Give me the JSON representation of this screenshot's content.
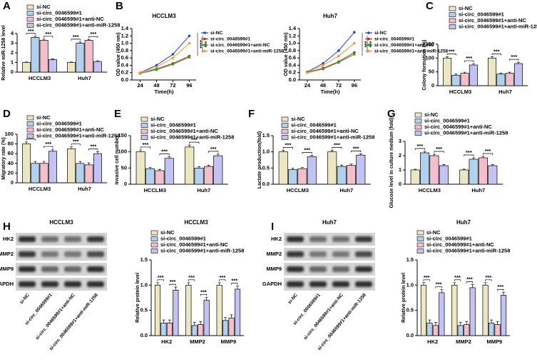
{
  "chart_data": [
    {
      "type": "bar",
      "panel": "A",
      "ylabel": "Relative miR-1258 level",
      "categories": [
        "HCCLM3",
        "Huh7"
      ],
      "series": [
        {
          "name": "si-NC",
          "color": "#ece7c3",
          "values": [
            1,
            1
          ],
          "errors": [
            0.05,
            0.05
          ]
        },
        {
          "name": "si-circ_0046599#1",
          "color": "#b3d1ee",
          "values": [
            3.6,
            3.0
          ],
          "errors": [
            0.12,
            0.12
          ]
        },
        {
          "name": "si-circ_0046599#1+anti-NC",
          "color": "#f4bfcc",
          "values": [
            3.3,
            3.3
          ],
          "errors": [
            0.12,
            0.1
          ]
        },
        {
          "name": "si-circ_0046599#1+anti-miR-1258",
          "color": "#c3c3f3",
          "values": [
            1.3,
            1.1
          ],
          "errors": [
            0.08,
            0.08
          ]
        }
      ],
      "ylim": [
        0,
        4
      ],
      "yticks": [
        0,
        1,
        2,
        3,
        4
      ],
      "significance": [
        [
          "***",
          "***"
        ],
        [
          "***",
          "***"
        ]
      ]
    },
    {
      "type": "line",
      "panel": "B",
      "title": "HCCLM3",
      "xlabel": "Time(h)",
      "ylabel": "OD value (450 nm)",
      "x": [
        24,
        48,
        72,
        96
      ],
      "xlim": [
        12,
        106
      ],
      "series": [
        {
          "name": "si-NC",
          "color": "#1f3fd6",
          "values": [
            0.2,
            0.4,
            0.7,
            1.2
          ]
        },
        {
          "name": "si-circ_0046599#1",
          "color": "#d62020",
          "values": [
            0.18,
            0.3,
            0.45,
            0.65
          ]
        },
        {
          "name": "si-circ_0046599#1+anti-NC",
          "color": "#2e9a2e",
          "values": [
            0.18,
            0.28,
            0.43,
            0.62
          ]
        },
        {
          "name": "si-circ_0046599#1+anti-miR-1258",
          "color": "#f39a2c",
          "values": [
            0.2,
            0.35,
            0.6,
            1.0
          ]
        }
      ],
      "ylim": [
        0,
        1.4
      ],
      "yticks": [
        {
          "value": 0,
          "label": "0.0"
        },
        0.2,
        0.4,
        0.6,
        0.8,
        {
          "value": 1,
          "label": "1.0"
        },
        1.2,
        1.4
      ],
      "significance": [
        "****",
        "***"
      ]
    },
    {
      "type": "line",
      "title": "Huh7",
      "xlabel": "Time(h)",
      "ylabel": "OD value (450 nm)",
      "x": [
        24,
        48,
        72,
        96
      ],
      "xlim": [
        12,
        106
      ],
      "series": [
        {
          "name": "si-NC",
          "color": "#1f3fd6",
          "values": [
            0.22,
            0.45,
            0.8,
            1.3
          ]
        },
        {
          "name": "si-circ_0046599#1",
          "color": "#d62020",
          "values": [
            0.2,
            0.32,
            0.5,
            0.75
          ]
        },
        {
          "name": "si-circ_0046599#1+anti-NC",
          "color": "#2e9a2e",
          "values": [
            0.2,
            0.3,
            0.48,
            0.7
          ]
        },
        {
          "name": "si-circ_0046599#1+anti-miR-1258",
          "color": "#f39a2c",
          "values": [
            0.2,
            0.4,
            0.65,
            1.0
          ]
        }
      ],
      "ylim": [
        0,
        1.4
      ],
      "yticks": [
        {
          "value": 0,
          "label": "0.0"
        },
        0.2,
        0.4,
        0.6,
        0.8,
        {
          "value": 1,
          "label": "1.0"
        },
        1.2,
        1.4
      ],
      "significance": [
        "***",
        "***"
      ]
    },
    {
      "type": "bar",
      "panel": "C",
      "ylabel": "Colony formation (%)",
      "categories": [
        "HCCLM3",
        "Huh7"
      ],
      "series": [
        {
          "name": "si-NC",
          "color": "#ece7c3",
          "values": [
            100,
            100
          ],
          "errors": [
            5,
            5
          ]
        },
        {
          "name": "si-circ_0046599#1",
          "color": "#b3d1ee",
          "values": [
            38,
            42
          ],
          "errors": [
            4,
            4
          ]
        },
        {
          "name": "si-circ_0046599#1+anti-NC",
          "color": "#f4bfcc",
          "values": [
            45,
            45
          ],
          "errors": [
            4,
            4
          ]
        },
        {
          "name": "si-circ_0046599#1+anti-miR-1258",
          "color": "#c3c3f3",
          "values": [
            75,
            80
          ],
          "errors": [
            5,
            5
          ]
        }
      ],
      "ylim": [
        0,
        150
      ],
      "yticks": [
        0,
        50,
        100,
        150
      ],
      "significance": [
        [
          "***",
          "***"
        ],
        [
          "***",
          "***"
        ]
      ]
    },
    {
      "type": "bar",
      "panel": "D",
      "ylabel": "Migratory rate (%)",
      "categories": [
        "HCCLM3",
        "Huh7"
      ],
      "series": [
        {
          "name": "si-NC",
          "color": "#ece7c3",
          "values": [
            80,
            70
          ],
          "errors": [
            4,
            4
          ]
        },
        {
          "name": "si-circ_0046599#1",
          "color": "#b3d1ee",
          "values": [
            40,
            40
          ],
          "errors": [
            4,
            4
          ]
        },
        {
          "name": "si-circ_0046599#1+anti-NC",
          "color": "#f4bfcc",
          "values": [
            40,
            37
          ],
          "errors": [
            4,
            4
          ]
        },
        {
          "name": "si-circ_0046599#1+anti-miR-1258",
          "color": "#c3c3f3",
          "values": [
            65,
            60
          ],
          "errors": [
            4,
            4
          ]
        }
      ],
      "ylim": [
        0,
        100
      ],
      "yticks": [
        0,
        20,
        40,
        60,
        80,
        100
      ],
      "significance": [
        [
          "***",
          "***"
        ],
        [
          "***",
          "***"
        ]
      ]
    },
    {
      "type": "bar",
      "panel": "E",
      "ylabel": "Invasive cell number",
      "categories": [
        "HCCLM3",
        "Huh7"
      ],
      "series": [
        {
          "name": "si-NC",
          "color": "#ece7c3",
          "values": [
            100,
            115
          ],
          "errors": [
            6,
            6
          ]
        },
        {
          "name": "si-circ_0046599#1",
          "color": "#b3d1ee",
          "values": [
            48,
            50
          ],
          "errors": [
            4,
            4
          ]
        },
        {
          "name": "si-circ_0046599#1+anti-NC",
          "color": "#f4bfcc",
          "values": [
            42,
            55
          ],
          "errors": [
            4,
            4
          ]
        },
        {
          "name": "si-circ_0046599#1+anti-miR-1258",
          "color": "#c3c3f3",
          "values": [
            80,
            88
          ],
          "errors": [
            5,
            5
          ]
        }
      ],
      "ylim": [
        0,
        150
      ],
      "yticks": [
        0,
        50,
        100,
        150
      ],
      "significance": [
        [
          "***",
          "***"
        ],
        [
          "***",
          "***"
        ]
      ]
    },
    {
      "type": "bar",
      "panel": "F",
      "ylabel": "Lactate production(fold)",
      "categories": [
        "HCCLM3",
        "Huh7"
      ],
      "series": [
        {
          "name": "si-NC",
          "color": "#ece7c3",
          "values": [
            1.0,
            1.0
          ],
          "errors": [
            0.05,
            0.05
          ]
        },
        {
          "name": "si-circ_0046599#1",
          "color": "#b3d1ee",
          "values": [
            0.45,
            0.55
          ],
          "errors": [
            0.04,
            0.04
          ]
        },
        {
          "name": "si-circ_0046599#1+anti-NC",
          "color": "#f4bfcc",
          "values": [
            0.48,
            0.58
          ],
          "errors": [
            0.04,
            0.04
          ]
        },
        {
          "name": "si-circ_0046599#1+anti-miR-1258",
          "color": "#c3c3f3",
          "values": [
            0.85,
            0.9
          ],
          "errors": [
            0.04,
            0.04
          ]
        }
      ],
      "ylim": [
        0,
        1.5
      ],
      "yticks": [
        {
          "value": 0,
          "label": "0.0"
        },
        0.5,
        {
          "value": 1,
          "label": "1.0"
        },
        1.5
      ],
      "significance": [
        [
          "***",
          "***"
        ],
        [
          "***",
          "***"
        ]
      ]
    },
    {
      "type": "bar",
      "panel": "G",
      "ylabel": "Glucose level in culture medium (fold)",
      "categories": [
        "HCCLM3",
        "Huh7"
      ],
      "series": [
        {
          "name": "si-NC",
          "color": "#ece7c3",
          "values": [
            1,
            1
          ],
          "errors": [
            0.05,
            0.05
          ]
        },
        {
          "name": "si-circ_0046599#1",
          "color": "#b3d1ee",
          "values": [
            2.2,
            1.75
          ],
          "errors": [
            0.1,
            0.1
          ]
        },
        {
          "name": "si-circ_0046599#1+anti-NC",
          "color": "#f4bfcc",
          "values": [
            2.0,
            1.85
          ],
          "errors": [
            0.1,
            0.1
          ]
        },
        {
          "name": "si-circ_0046599#1+anti-miR-1258",
          "color": "#c3c3f3",
          "values": [
            1.3,
            1.3
          ],
          "errors": [
            0.08,
            0.08
          ]
        }
      ],
      "ylim": [
        0,
        3
      ],
      "yticks": [
        0,
        1,
        2,
        3
      ],
      "significance": [
        [
          "***",
          "***"
        ],
        [
          "***",
          "***"
        ]
      ]
    },
    {
      "type": "bar",
      "title": "HCCLM3",
      "ylabel": "Relative protein level",
      "categories": [
        "HK2",
        "MMP2",
        "MMP9"
      ],
      "series": [
        {
          "name": "si-NC",
          "color": "#ece7c3",
          "values": [
            1,
            1,
            1
          ],
          "errors": [
            0.05,
            0.05,
            0.05
          ]
        },
        {
          "name": "si-circ_0046599#1",
          "color": "#b3d1ee",
          "values": [
            0.25,
            0.2,
            0.3
          ],
          "errors": [
            0.06,
            0.06,
            0.06
          ]
        },
        {
          "name": "si-circ_0046599#1+anti-NC",
          "color": "#f4bfcc",
          "values": [
            0.25,
            0.22,
            0.35
          ],
          "errors": [
            0.06,
            0.06,
            0.06
          ]
        },
        {
          "name": "si-circ_0046599#1+anti-miR-1258",
          "color": "#c3c3f3",
          "values": [
            0.9,
            0.7,
            0.92
          ],
          "errors": [
            0.06,
            0.06,
            0.06
          ]
        }
      ],
      "ylim": [
        0,
        1.5
      ],
      "yticks": [
        {
          "value": 0,
          "label": "0.0"
        },
        0.5,
        {
          "value": 1,
          "label": "1.0"
        },
        1.5
      ],
      "significance": [
        [
          "***",
          "***"
        ],
        [
          "***",
          "***"
        ],
        [
          "***",
          "***"
        ]
      ]
    },
    {
      "type": "bar",
      "title": "Huh7",
      "ylabel": "Relative protein level",
      "categories": [
        "HK2",
        "MMP2",
        "MMP9"
      ],
      "series": [
        {
          "name": "si-NC",
          "color": "#ece7c3",
          "values": [
            1,
            1,
            1
          ],
          "errors": [
            0.05,
            0.05,
            0.05
          ]
        },
        {
          "name": "si-circ_0046599#1",
          "color": "#b3d1ee",
          "values": [
            0.25,
            0.2,
            0.25
          ],
          "errors": [
            0.06,
            0.06,
            0.06
          ]
        },
        {
          "name": "si-circ_0046599#1+anti-NC",
          "color": "#f4bfcc",
          "values": [
            0.2,
            0.22,
            0.22
          ],
          "errors": [
            0.06,
            0.06,
            0.06
          ]
        },
        {
          "name": "si-circ_0046599#1+anti-miR-1258",
          "color": "#c3c3f3",
          "values": [
            0.85,
            0.95,
            0.8
          ],
          "errors": [
            0.06,
            0.06,
            0.06
          ]
        }
      ],
      "ylim": [
        0,
        1.5
      ],
      "yticks": [
        {
          "value": 0,
          "label": "0.0"
        },
        0.5,
        {
          "value": 1,
          "label": "1.0"
        },
        1.5
      ],
      "significance": [
        [
          "***",
          "***"
        ],
        [
          "***",
          "***"
        ],
        [
          "***",
          "***"
        ]
      ]
    }
  ],
  "blots": [
    {
      "panel": "H",
      "title": "HCCLM3",
      "rows": [
        "HK2",
        "MMP2",
        "MMP9",
        "GAPDH"
      ],
      "lanes": [
        "si-NC",
        "si-circ_0046599#1",
        "si-circ_0046599#1+anti-NC",
        "si-circ_0046599#1+anti-miR-1258"
      ]
    },
    {
      "panel": "I",
      "title": "Huh7",
      "rows": [
        "HK2",
        "MMP2",
        "MMP9",
        "GAPDH"
      ],
      "lanes": [
        "si-NC",
        "si-circ_0046599#1",
        "si-circ_0046599#1+anti-NC",
        "si-circ_0046599#1+anti-miR-1258"
      ]
    }
  ]
}
